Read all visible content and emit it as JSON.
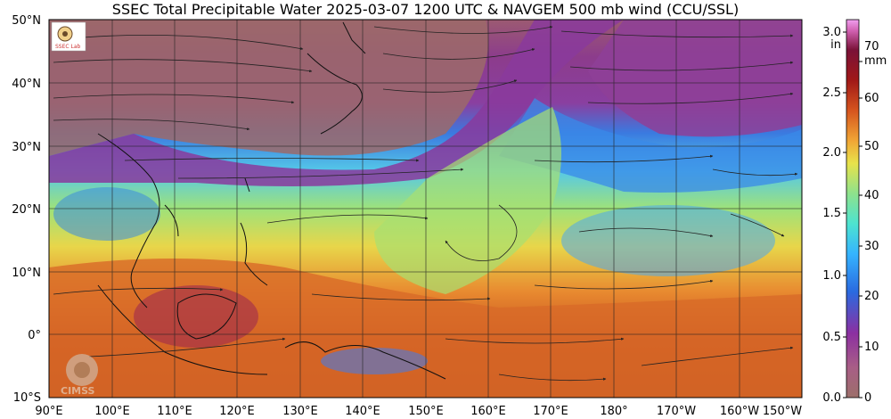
{
  "title": "SSEC Total Precipitable Water  2025-03-07 1200 UTC & NAVGEM 500 mb wind (CCU/SSL)",
  "lat_labels": [
    "50°N",
    "40°N",
    "30°N",
    "20°N",
    "10°N",
    "0°",
    "10°S"
  ],
  "lon_labels": [
    "90°E",
    "100°E",
    "110°E",
    "120°E",
    "130°E",
    "140°E",
    "150°E",
    "160°E",
    "170°E",
    "180°",
    "170°W",
    "160°W",
    "150°W"
  ],
  "colorbar": {
    "inch_unit": "in",
    "mm_unit": "mm",
    "inch_ticks": [
      "3.0",
      "2.5",
      "2.0",
      "1.5",
      "1.0",
      "0.5",
      "0.0"
    ],
    "mm_ticks": [
      "70",
      "60",
      "50",
      "40",
      "30",
      "20",
      "10",
      "0"
    ],
    "colors": [
      "#9c6f6a",
      "#a85e86",
      "#8c2fa1",
      "#2a6ae0",
      "#35b4ff",
      "#4de3d0",
      "#8ee28c",
      "#e8e24a",
      "#f0a535",
      "#d5541e",
      "#a01818",
      "#7a1238",
      "#d060b0",
      "#f0a0f0"
    ]
  },
  "watermark": "CIMSS",
  "logo_text": "SSEC Lab"
}
